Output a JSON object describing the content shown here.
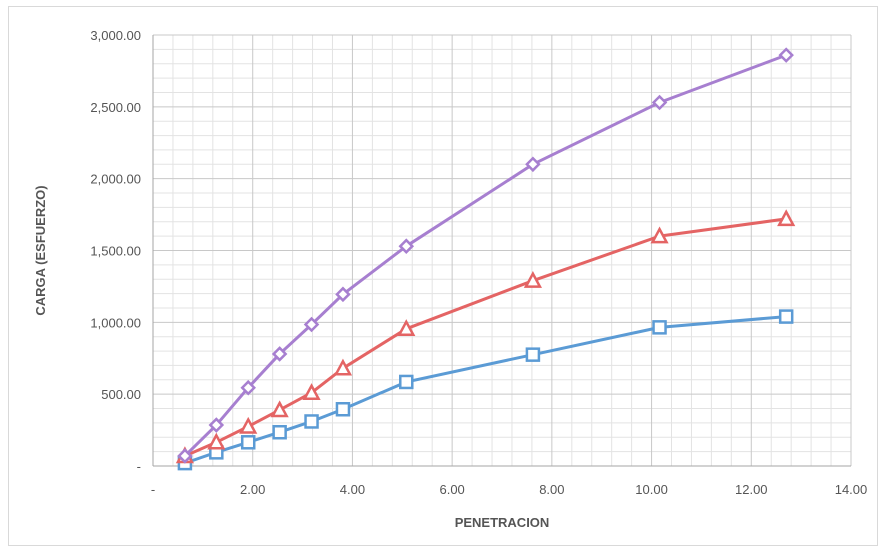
{
  "chart_data": {
    "type": "line",
    "title": "",
    "xlabel": "PENETRACION",
    "ylabel": "CARGA (ESFUERZO)",
    "xlim": [
      0,
      14
    ],
    "ylim": [
      0,
      3000
    ],
    "x_ticks": [
      0,
      2,
      4,
      6,
      8,
      10,
      12,
      14
    ],
    "x_tick_labels": [
      "-",
      "2.00",
      "4.00",
      "6.00",
      "8.00",
      "10.00",
      "12.00",
      "14.00"
    ],
    "y_ticks": [
      0,
      500,
      1000,
      1500,
      2000,
      2500,
      3000
    ],
    "y_tick_labels": [
      "-",
      "500.00",
      "1,000.00",
      "1,500.00",
      "2,000.00",
      "2,500.00",
      "3,000.00"
    ],
    "grid": true,
    "minor_grid": true,
    "legend": "none",
    "x": [
      0.64,
      1.27,
      1.91,
      2.54,
      3.18,
      3.81,
      5.08,
      7.62,
      10.16,
      12.7
    ],
    "series": [
      {
        "marker": "square",
        "color": "#5b9bd5",
        "values": [
          20,
          95,
          165,
          235,
          310,
          395,
          585,
          775,
          965,
          1040
        ]
      },
      {
        "marker": "triangle",
        "color": "#e46464",
        "values": [
          70,
          165,
          275,
          390,
          510,
          680,
          955,
          1290,
          1600,
          1720
        ]
      },
      {
        "marker": "diamond",
        "color": "#a77fd0",
        "values": [
          70,
          285,
          545,
          780,
          985,
          1195,
          1530,
          2100,
          2530,
          2860
        ]
      }
    ]
  }
}
